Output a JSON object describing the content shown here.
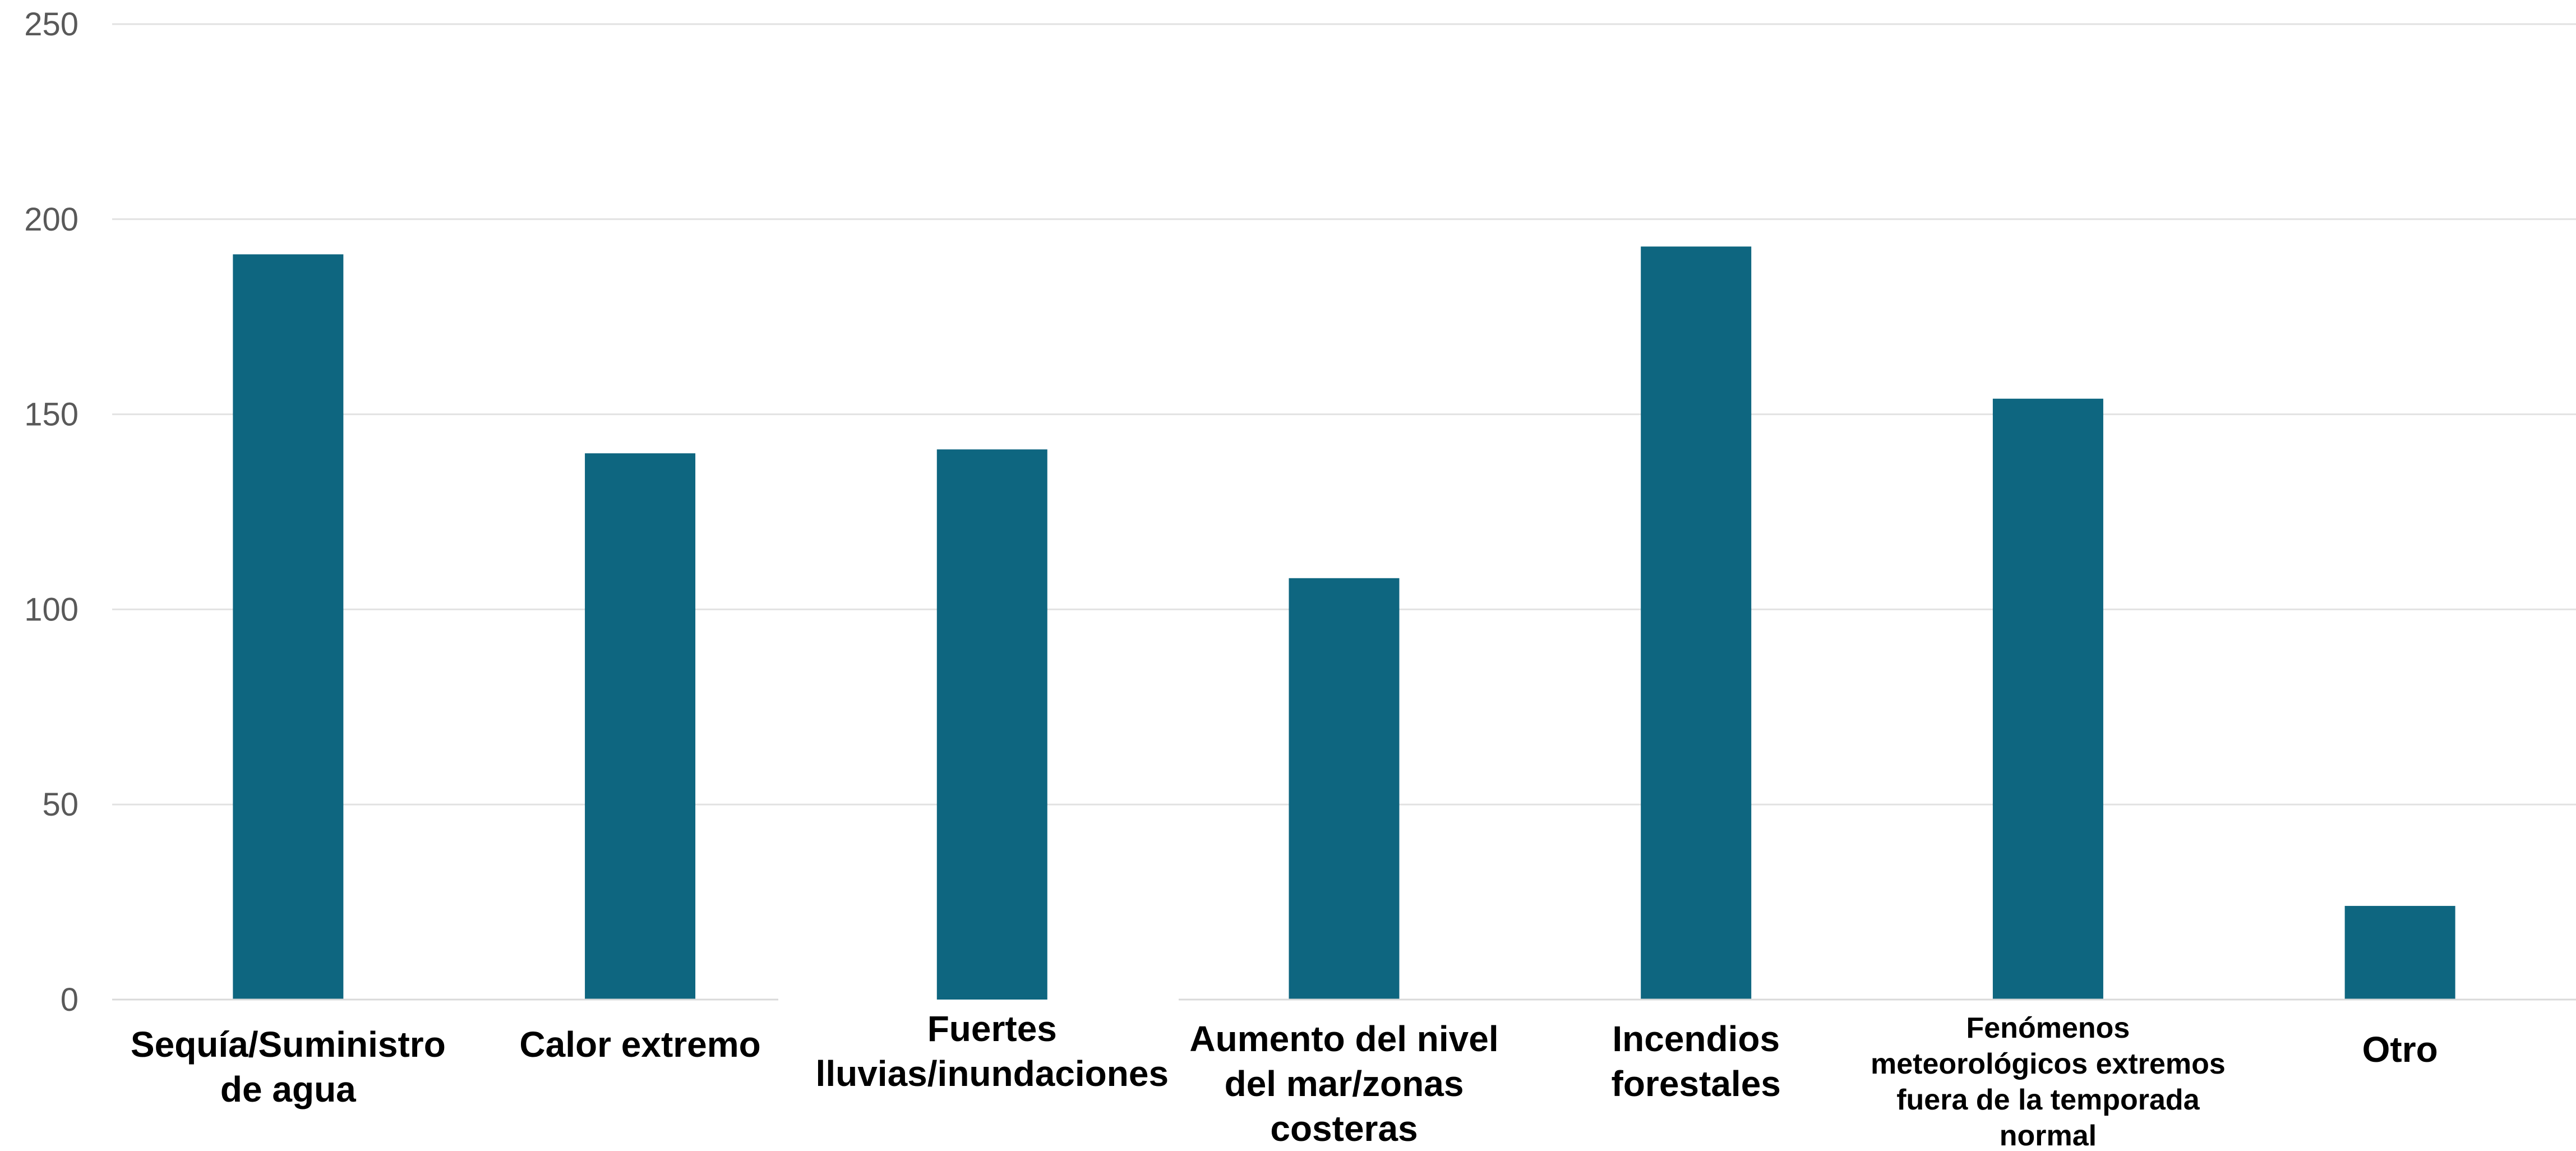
{
  "chart_data": {
    "type": "bar",
    "categories": [
      "Sequía/Suministro de agua",
      "Calor extremo",
      "Fuertes lluvias/inundaciones",
      "Aumento del nivel del mar/zonas costeras",
      "Incendios forestales",
      "Fenómenos meteorológicos extremos fuera de la temporada normal",
      "Otro"
    ],
    "category_label_lines": [
      [
        "Sequía/Suministro",
        "de agua"
      ],
      [
        "Calor extremo"
      ],
      [
        "Fuertes",
        "lluvias/inundaciones"
      ],
      [
        "Aumento del nivel",
        "del mar/zonas",
        "costeras"
      ],
      [
        "Incendios",
        "forestales"
      ],
      [
        "Fenómenos",
        "meteorológicos extremos",
        "fuera de la temporada",
        "normal"
      ],
      [
        "Otro"
      ]
    ],
    "values": [
      191,
      140,
      141,
      108,
      193,
      154,
      24
    ],
    "ylim": [
      0,
      250
    ],
    "yticks": [
      0,
      50,
      100,
      150,
      200,
      250
    ],
    "title": "",
    "xlabel": "",
    "ylabel": "",
    "grid": true,
    "legend": "none",
    "bar_color": "#0e6680"
  }
}
